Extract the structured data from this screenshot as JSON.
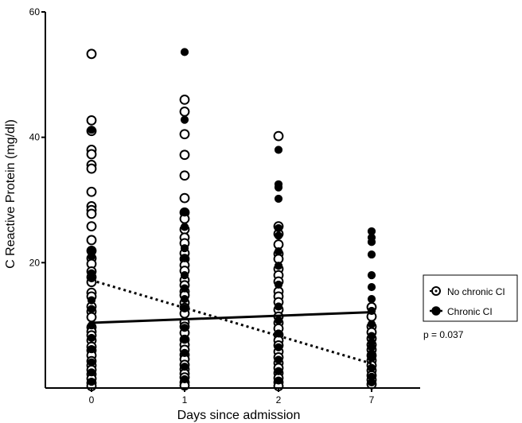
{
  "chart_data": {
    "type": "scatter",
    "title": "",
    "xlabel": "Days since admission",
    "ylabel": "C Reactive Protein (mg/dl)",
    "categories": [
      "0",
      "1",
      "2",
      "7"
    ],
    "ylim": [
      0,
      60
    ],
    "yticks": [
      20,
      40,
      60
    ],
    "grid": false,
    "legend_position": "right",
    "p_value_label": "p = 0.037",
    "series": [
      {
        "name": "No chronic CI",
        "marker": "open-circle",
        "color": "#000000",
        "trend": {
          "style": "dotted",
          "y_start": 17.2,
          "y_end": 3.9
        },
        "points": {
          "0": [
            53.3,
            42.7,
            41.0,
            38.0,
            37.3,
            35.6,
            35.0,
            31.3,
            29.0,
            28.4,
            27.8,
            25.8,
            23.6,
            21.9,
            20.7,
            19.8,
            18.6,
            17.7,
            16.9,
            15.2,
            14.6,
            13.0,
            12.2,
            11.3,
            9.7,
            9.0,
            8.4,
            7.6,
            6.6,
            6.0,
            5.2,
            4.3,
            3.6,
            2.9,
            2.2,
            1.5,
            0.8,
            0.3
          ],
          "1": [
            46.0,
            44.1,
            40.5,
            37.2,
            33.9,
            30.3,
            28.0,
            27.0,
            25.3,
            24.0,
            23.1,
            21.5,
            20.6,
            19.6,
            18.7,
            17.2,
            16.4,
            15.4,
            14.8,
            13.6,
            12.8,
            11.9,
            10.5,
            9.8,
            8.8,
            7.7,
            6.9,
            6.1,
            5.3,
            4.6,
            3.7,
            3.0,
            2.3,
            1.7,
            0.9,
            0.4
          ],
          "2": [
            40.2,
            25.8,
            24.6,
            22.9,
            21.4,
            20.6,
            19.0,
            18.0,
            17.0,
            15.4,
            14.6,
            13.7,
            12.5,
            11.4,
            10.4,
            9.5,
            8.5,
            7.6,
            6.8,
            5.8,
            4.9,
            4.0,
            3.2,
            2.4,
            1.6,
            0.9,
            0.3
          ],
          "7": [
            12.9,
            11.4,
            9.8,
            8.9,
            7.9,
            6.9,
            6.1,
            5.2,
            4.4,
            3.6,
            2.8,
            2.0,
            1.3,
            0.6
          ]
        }
      },
      {
        "name": "Chronic CI",
        "marker": "filled-circle",
        "color": "#000000",
        "trend": {
          "style": "solid",
          "y_start": 10.4,
          "y_end": 12.1
        },
        "points": {
          "0": [
            41.2,
            22.0,
            21.0,
            18.3,
            17.5,
            14.0,
            12.6,
            10.0,
            8.0,
            6.2,
            4.1,
            2.5,
            1.0
          ],
          "1": [
            53.6,
            42.8,
            28.0,
            25.7,
            22.3,
            20.7,
            18.0,
            15.9,
            14.2,
            12.7,
            9.6,
            7.7,
            5.6,
            3.4,
            1.4
          ],
          "2": [
            38.0,
            32.5,
            32.0,
            30.2,
            25.5,
            24.3,
            21.8,
            19.5,
            16.5,
            13.0,
            10.8,
            8.7,
            6.5,
            4.5,
            2.7,
            1.2
          ],
          "7": [
            25.0,
            24.0,
            23.3,
            21.3,
            18.0,
            16.1,
            14.2,
            12.3,
            10.2,
            8.3,
            7.3,
            6.5,
            5.5,
            4.8,
            3.2,
            1.8,
            0.9
          ]
        }
      }
    ]
  }
}
